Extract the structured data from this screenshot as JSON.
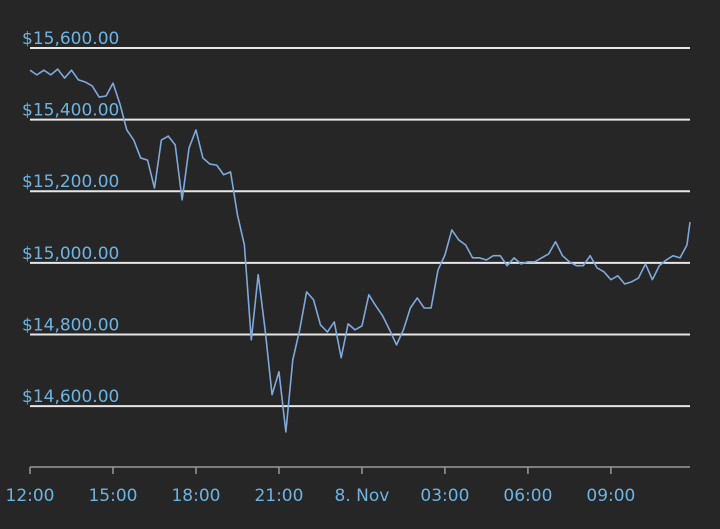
{
  "chart_data": {
    "type": "line",
    "x": [
      0,
      0.25,
      0.5,
      0.75,
      1,
      1.25,
      1.5,
      1.75,
      2,
      2.25,
      2.5,
      2.75,
      3,
      3.25,
      3.5,
      3.75,
      4,
      4.25,
      4.5,
      4.75,
      5,
      5.25,
      5.5,
      5.75,
      6,
      6.25,
      6.5,
      6.75,
      7,
      7.25,
      7.5,
      7.75,
      8,
      8.25,
      8.5,
      8.75,
      9,
      9.25,
      9.5,
      9.75,
      10,
      10.25,
      10.5,
      10.75,
      11,
      11.25,
      11.5,
      11.75,
      12,
      12.25,
      12.5,
      12.75,
      13,
      13.25,
      13.5,
      13.75,
      14,
      14.25,
      14.5,
      14.75,
      15,
      15.25,
      15.5,
      15.75,
      16,
      16.25,
      16.5,
      16.75,
      17,
      17.25,
      17.5,
      17.75,
      18,
      18.25,
      18.5,
      18.75,
      19,
      19.25,
      19.5,
      19.75,
      20,
      20.25,
      20.5,
      20.75,
      21,
      21.25,
      21.5,
      21.75,
      22,
      22.25,
      22.5,
      22.75,
      23,
      23.25,
      23.5,
      23.75,
      23.86
    ],
    "series": [
      {
        "color": "#7fa9dc",
        "values": [
          15538,
          15525,
          15538,
          15525,
          15541,
          15516,
          15538,
          15511,
          15505,
          15494,
          15463,
          15466,
          15502,
          15444,
          15371,
          15343,
          15293,
          15287,
          15209,
          15343,
          15354,
          15329,
          15176,
          15321,
          15371,
          15293,
          15276,
          15273,
          15246,
          15254,
          15134,
          15050,
          14785,
          14967,
          14813,
          14632,
          14696,
          14528,
          14729,
          14813,
          14919,
          14897,
          14827,
          14807,
          14835,
          14735,
          14830,
          14813,
          14824,
          14911,
          14880,
          14852,
          14813,
          14771,
          14813,
          14874,
          14902,
          14874,
          14874,
          14980,
          15022,
          15092,
          15064,
          15050,
          15014,
          15014,
          15008,
          15020,
          15020,
          14992,
          15014,
          14997,
          15003,
          15003,
          15014,
          15025,
          15059,
          15020,
          15003,
          14992,
          14992,
          15020,
          14986,
          14975,
          14953,
          14964,
          14941,
          14947,
          14958,
          14997,
          14953,
          14992,
          15008,
          15020,
          15014,
          15050,
          15114
        ]
      }
    ],
    "xlim": [
      0,
      23.86
    ],
    "xticks": [
      {
        "value": 0,
        "label": "12:00"
      },
      {
        "value": 3,
        "label": "15:00"
      },
      {
        "value": 6,
        "label": "18:00"
      },
      {
        "value": 9,
        "label": "21:00"
      },
      {
        "value": 12,
        "label": "8. Nov"
      },
      {
        "value": 15,
        "label": "03:00"
      },
      {
        "value": 18,
        "label": "06:00"
      },
      {
        "value": 21,
        "label": "09:00"
      }
    ],
    "ylim": [
      14430,
      15600
    ],
    "yticks": [
      {
        "value": 14600,
        "label": "$14,600.00"
      },
      {
        "value": 14800,
        "label": "$14,800.00"
      },
      {
        "value": 15000,
        "label": "$15,000.00"
      },
      {
        "value": 15200,
        "label": "$15,200.00"
      },
      {
        "value": 15400,
        "label": "$15,400.00"
      },
      {
        "value": 15600,
        "label": "$15,600.00"
      }
    ],
    "grid": true
  }
}
